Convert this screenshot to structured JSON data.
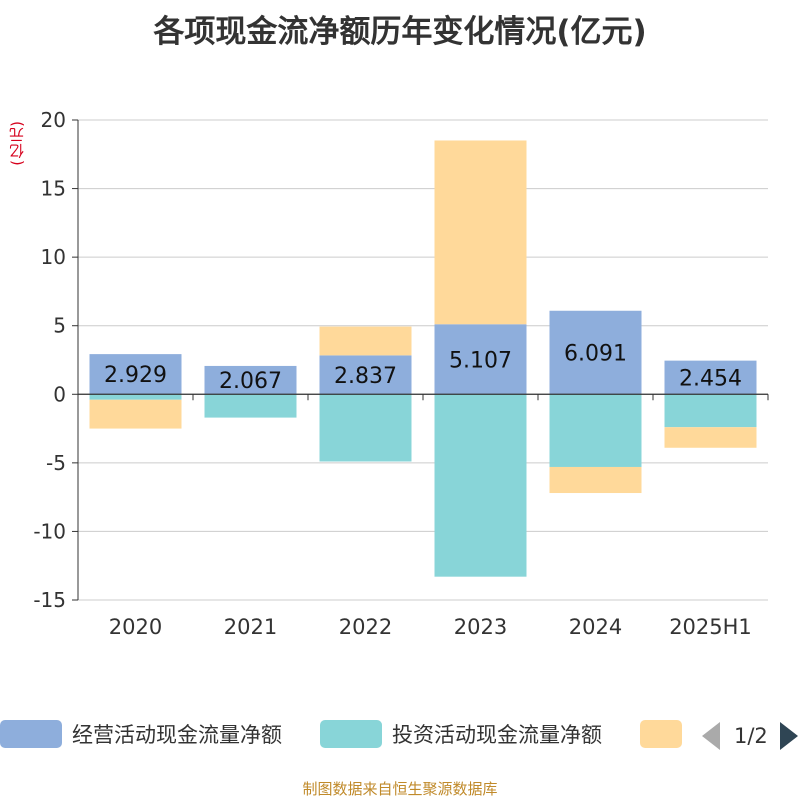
{
  "chart_data": {
    "type": "bar",
    "stacked": true,
    "title": "各项现金流净额历年变化情况(亿元)",
    "ylabel": "(亿元)",
    "ylim": [
      -15,
      20
    ],
    "yticks": [
      -15,
      -10,
      -5,
      0,
      5,
      10,
      15,
      20
    ],
    "categories": [
      "2020",
      "2021",
      "2022",
      "2023",
      "2024",
      "2025H1"
    ],
    "grid": true,
    "legend_position": "bottom",
    "series": [
      {
        "name": "经营活动现金流量净额",
        "color": "#8eaedc",
        "values": [
          2.929,
          2.067,
          2.837,
          5.107,
          6.091,
          2.454
        ],
        "data_labels": [
          "2.929",
          "2.067",
          "2.837",
          "5.107",
          "6.091",
          "2.454"
        ]
      },
      {
        "name": "投资活动现金流量净额",
        "color": "#88d5d8",
        "values": [
          -0.4,
          -1.7,
          -4.9,
          -13.3,
          -5.3,
          -2.4
        ]
      },
      {
        "name": "",
        "color": "#ffd99a",
        "values": [
          -2.1,
          0,
          2.1,
          13.4,
          -1.9,
          -1.5
        ]
      }
    ]
  },
  "legend": {
    "items": [
      {
        "label": "经营活动现金流量净额",
        "color": "#8eaedc"
      },
      {
        "label": "投资活动现金流量净额",
        "color": "#88d5d8"
      },
      {
        "label": "",
        "color": "#ffd99a"
      }
    ],
    "page": "1/2"
  },
  "source": "制图数据来自恒生聚源数据库"
}
